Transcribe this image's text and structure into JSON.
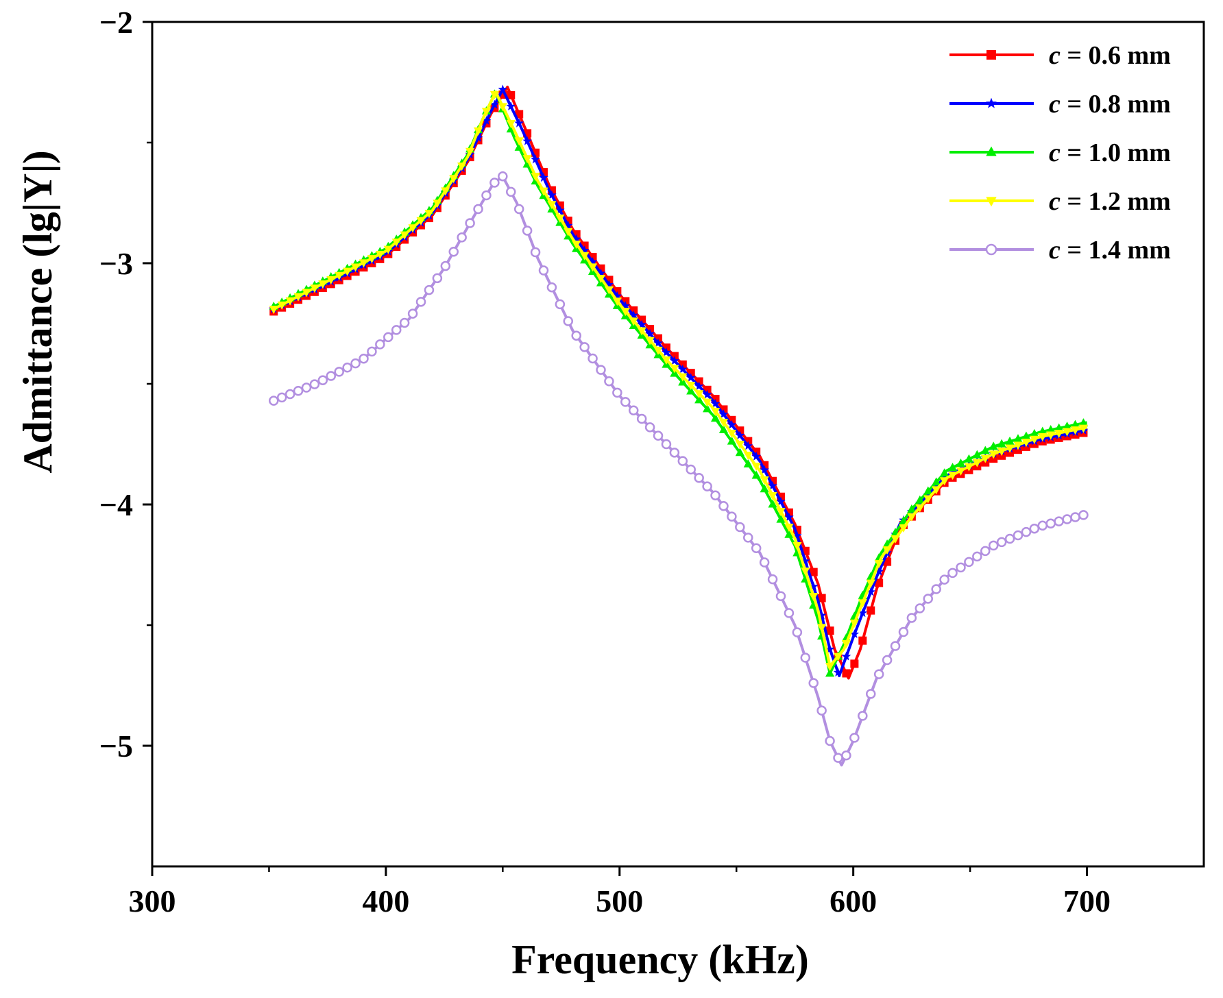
{
  "chart_data": {
    "type": "line",
    "title": "",
    "xlabel": "Frequency (kHz)",
    "ylabel": "Admittance (lg|Y|)",
    "xlim": [
      300,
      750
    ],
    "ylim": [
      -5.5,
      -2
    ],
    "xticks": [
      300,
      400,
      500,
      600,
      700
    ],
    "xtick_labels": [
      "300",
      "400",
      "500",
      "600",
      "700"
    ],
    "yticks": [
      -2,
      -3,
      -4,
      -5
    ],
    "ytick_labels": [
      "−2",
      "−3",
      "−4",
      "−5"
    ],
    "legend_position": "top-right",
    "series": [
      {
        "name": "c = 0.6 mm",
        "param": "c",
        "value_label": " = 0.6 mm",
        "color": "#ff0000",
        "marker": "square",
        "x": [
          352,
          380,
          400,
          420,
          435,
          445,
          452,
          460,
          470,
          480,
          500,
          520,
          540,
          560,
          575,
          585,
          592,
          598,
          603,
          610,
          620,
          640,
          660,
          680,
          700
        ],
        "y": [
          -3.2,
          -3.07,
          -2.97,
          -2.8,
          -2.58,
          -2.38,
          -2.27,
          -2.45,
          -2.68,
          -2.86,
          -3.13,
          -3.35,
          -3.55,
          -3.8,
          -4.08,
          -4.33,
          -4.6,
          -4.72,
          -4.6,
          -4.35,
          -4.1,
          -3.9,
          -3.81,
          -3.74,
          -3.7
        ]
      },
      {
        "name": "c = 0.8 mm",
        "param": "c",
        "value_label": " = 0.8 mm",
        "color": "#0000ff",
        "marker": "star",
        "x": [
          352,
          380,
          400,
          420,
          435,
          445,
          450,
          458,
          470,
          480,
          500,
          520,
          540,
          560,
          575,
          585,
          590,
          594,
          600,
          610,
          620,
          640,
          660,
          680,
          700
        ],
        "y": [
          -3.19,
          -3.06,
          -2.96,
          -2.79,
          -2.57,
          -2.37,
          -2.28,
          -2.44,
          -2.7,
          -2.88,
          -3.15,
          -3.37,
          -3.57,
          -3.82,
          -4.1,
          -4.4,
          -4.6,
          -4.71,
          -4.55,
          -4.3,
          -4.08,
          -3.88,
          -3.79,
          -3.73,
          -3.69
        ]
      },
      {
        "name": "c = 1.0 mm",
        "param": "c",
        "value_label": " = 1.0 mm",
        "color": "#00ee00",
        "marker": "triangle",
        "x": [
          352,
          380,
          400,
          420,
          435,
          442,
          447,
          455,
          465,
          480,
          500,
          520,
          540,
          560,
          575,
          585,
          590,
          596,
          603,
          612,
          625,
          640,
          660,
          680,
          700
        ],
        "y": [
          -3.18,
          -3.04,
          -2.94,
          -2.77,
          -2.55,
          -2.39,
          -2.29,
          -2.48,
          -2.68,
          -2.92,
          -3.19,
          -3.42,
          -3.63,
          -3.9,
          -4.17,
          -4.48,
          -4.7,
          -4.58,
          -4.4,
          -4.2,
          -4.02,
          -3.86,
          -3.76,
          -3.7,
          -3.66
        ]
      },
      {
        "name": "c = 1.2 mm",
        "param": "c",
        "value_label": " = 1.2 mm",
        "color": "#ffff00",
        "marker": "down-triangle",
        "x": [
          352,
          380,
          400,
          420,
          435,
          442,
          447,
          455,
          465,
          480,
          500,
          520,
          540,
          560,
          575,
          585,
          590,
          596,
          603,
          612,
          625,
          640,
          660,
          680,
          700
        ],
        "y": [
          -3.19,
          -3.05,
          -2.95,
          -2.78,
          -2.56,
          -2.39,
          -2.29,
          -2.45,
          -2.66,
          -2.9,
          -3.17,
          -3.4,
          -3.6,
          -3.86,
          -4.14,
          -4.44,
          -4.67,
          -4.6,
          -4.43,
          -4.22,
          -4.05,
          -3.89,
          -3.79,
          -3.72,
          -3.68
        ]
      },
      {
        "name": "c = 1.4 mm",
        "param": "c",
        "value_label": " = 1.4 mm",
        "color": "#b28fe0",
        "marker": "circle",
        "x": [
          352,
          370,
          390,
          410,
          425,
          438,
          446,
          450,
          456,
          465,
          480,
          500,
          520,
          540,
          560,
          575,
          585,
          590,
          595,
          600,
          610,
          625,
          640,
          660,
          680,
          700
        ],
        "y": [
          -3.57,
          -3.5,
          -3.4,
          -3.23,
          -3.02,
          -2.8,
          -2.67,
          -2.64,
          -2.75,
          -2.98,
          -3.28,
          -3.55,
          -3.75,
          -3.95,
          -4.2,
          -4.5,
          -4.8,
          -4.98,
          -5.08,
          -4.98,
          -4.72,
          -4.47,
          -4.3,
          -4.17,
          -4.09,
          -4.04
        ]
      }
    ]
  }
}
